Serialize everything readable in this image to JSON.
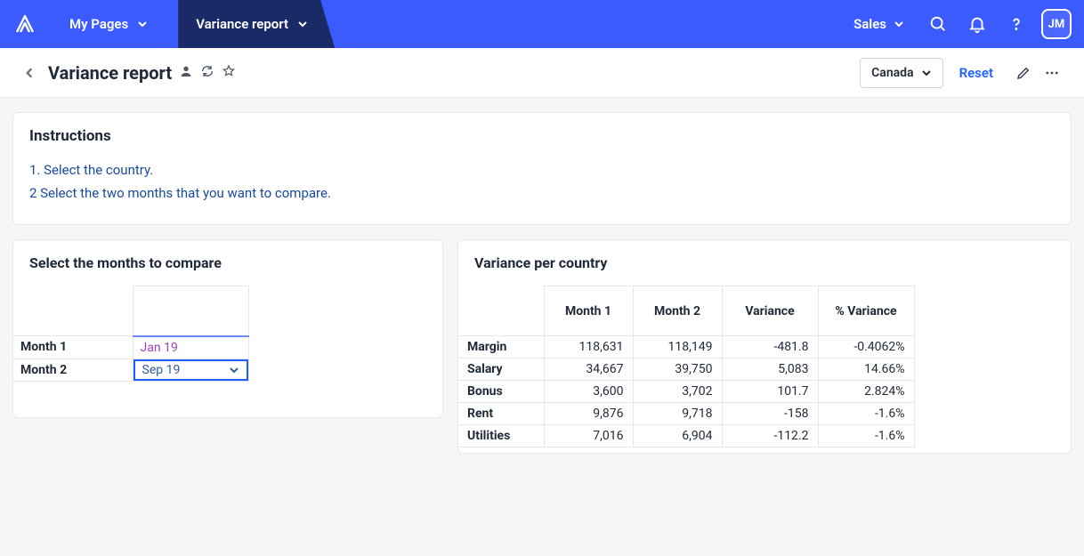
{
  "nav": {
    "my_pages": "My Pages",
    "active_tab": "Variance report",
    "sales": "Sales",
    "avatar": "JM"
  },
  "header": {
    "title": "Variance report",
    "country": "Canada",
    "reset": "Reset"
  },
  "instructions": {
    "title": "Instructions",
    "line1": "1. Select the country.",
    "line2": "2 Select the two months that you want to compare."
  },
  "month_selector": {
    "title": "Select the months to compare",
    "row1_label": "Month 1",
    "row1_value": "Jan 19",
    "row2_label": "Month 2",
    "row2_value": "Sep 19"
  },
  "variance": {
    "title": "Variance per country",
    "columns": [
      "Month 1",
      "Month 2",
      "Variance",
      "% Variance"
    ],
    "rows": [
      {
        "label": "Margin",
        "m1": "118,631",
        "m2": "118,149",
        "var": "-481.8",
        "pct": "-0.4062%"
      },
      {
        "label": "Salary",
        "m1": "34,667",
        "m2": "39,750",
        "var": "5,083",
        "pct": "14.66%"
      },
      {
        "label": "Bonus",
        "m1": "3,600",
        "m2": "3,702",
        "var": "101.7",
        "pct": "2.824%"
      },
      {
        "label": "Rent",
        "m1": "9,876",
        "m2": "9,718",
        "var": "-158",
        "pct": "-1.6%"
      },
      {
        "label": "Utilities",
        "m1": "7,016",
        "m2": "6,904",
        "var": "-112.2",
        "pct": "-1.6%"
      }
    ]
  },
  "colors": {
    "nav_bg": "#3b5bff",
    "tab_bg": "#1a2a66",
    "link_blue": "#1d5fff",
    "instruction_text": "#1a4b9c",
    "month1_value": "#a03fbf",
    "border": "#e5e7eb"
  }
}
